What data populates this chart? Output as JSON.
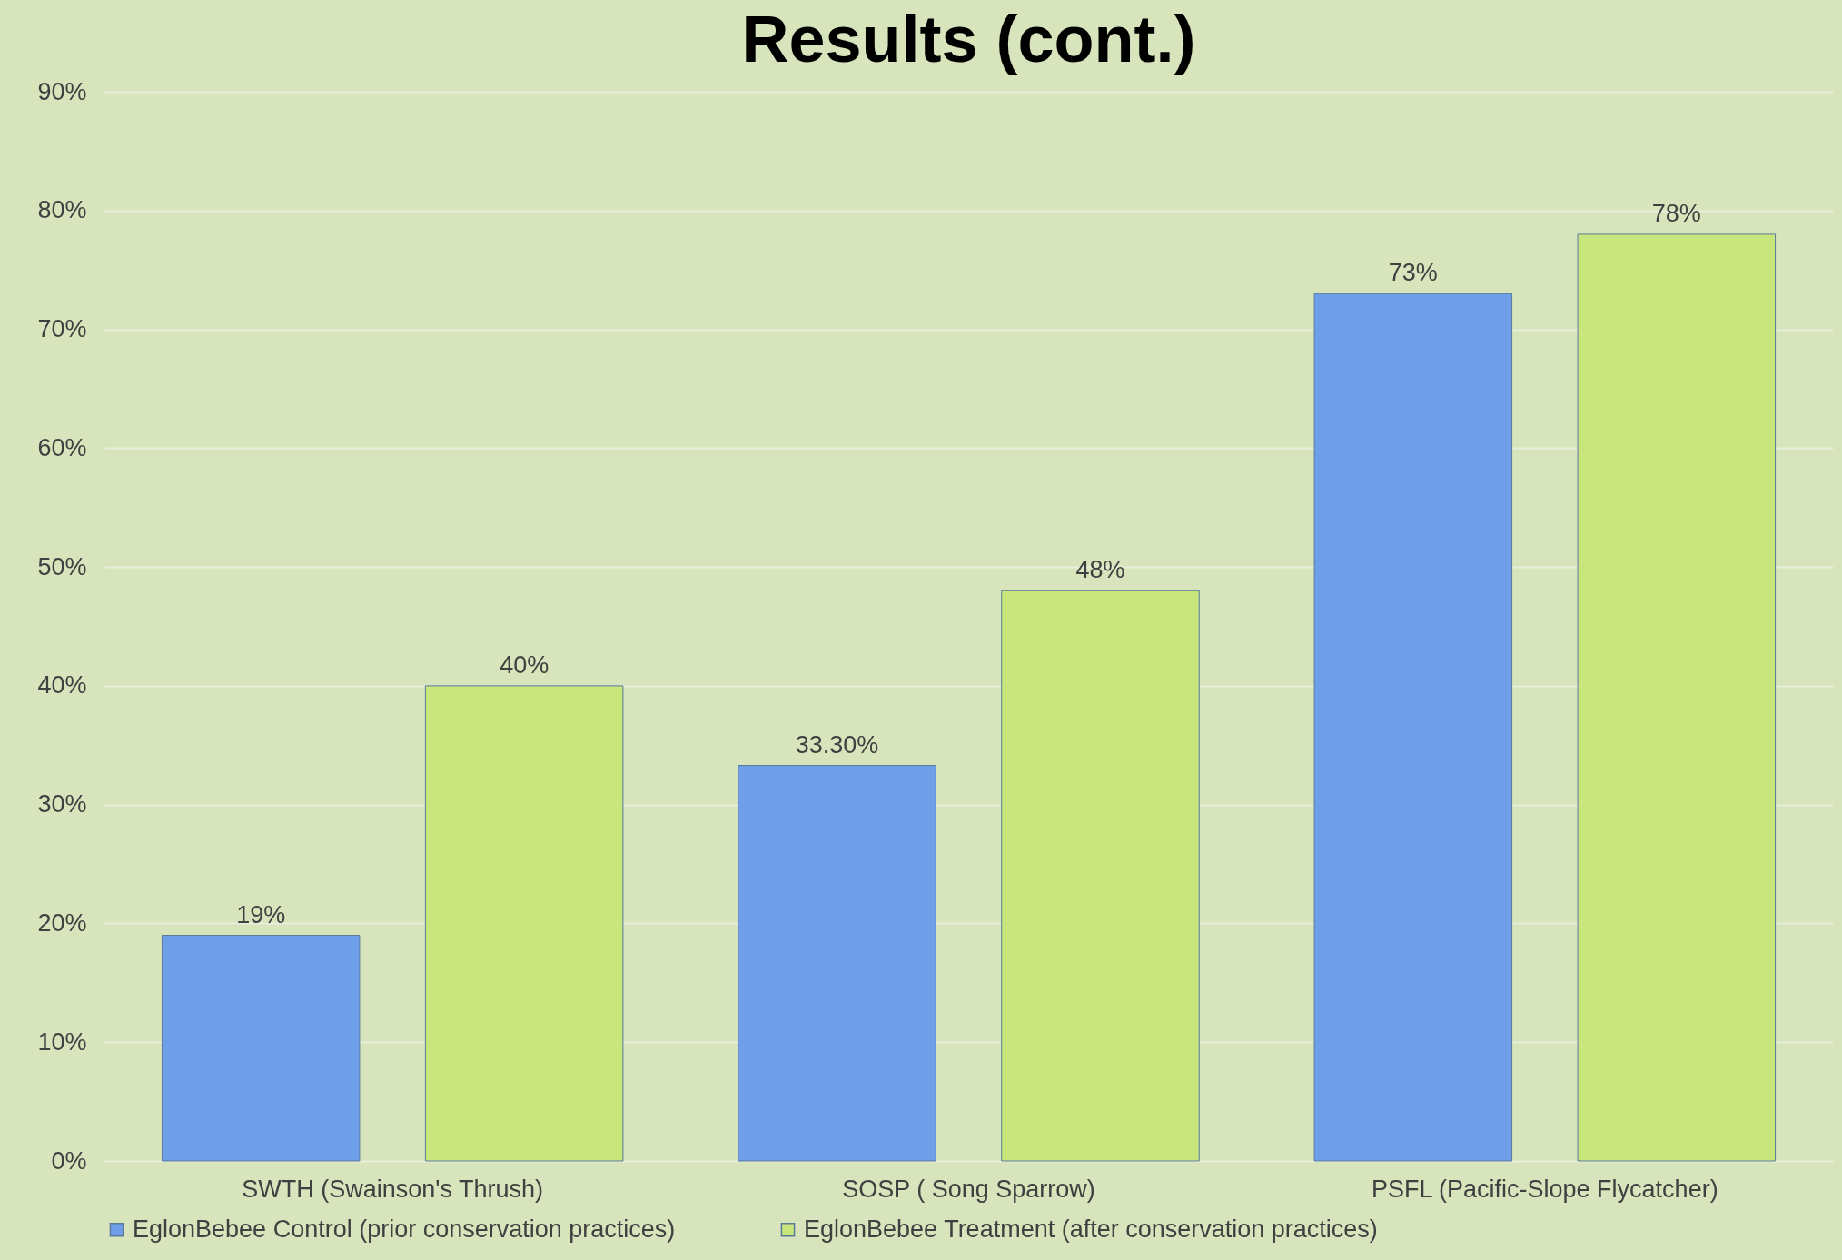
{
  "chart_data": {
    "type": "bar",
    "title": "Results (cont.)",
    "categories": [
      "SWTH (Swainson's Thrush)",
      "SOSP ( Song Sparrow)",
      "PSFL (Pacific-Slope Flycatcher)"
    ],
    "series": [
      {
        "name": "EglonBebee Control (prior conservation practices)",
        "color": "#6f9fe8",
        "values": [
          19,
          33.3,
          73
        ],
        "value_labels": [
          "19%",
          "33.30%",
          "73%"
        ]
      },
      {
        "name": "EglonBebee Treatment (after conservation practices)",
        "color": "#c9e67c",
        "values": [
          40,
          48,
          78
        ],
        "value_labels": [
          "40%",
          "48%",
          "78%"
        ]
      }
    ],
    "ylim": [
      0,
      90
    ],
    "yticks": [
      {
        "value": 0,
        "label": "0%"
      },
      {
        "value": 10,
        "label": "10%"
      },
      {
        "value": 20,
        "label": "20%"
      },
      {
        "value": 30,
        "label": "30%"
      },
      {
        "value": 40,
        "label": "40%"
      },
      {
        "value": 50,
        "label": "50%"
      },
      {
        "value": 60,
        "label": "60%"
      },
      {
        "value": 70,
        "label": "70%"
      },
      {
        "value": 80,
        "label": "80%"
      },
      {
        "value": 90,
        "label": "90%"
      }
    ],
    "grid": "y",
    "legend": "bottom"
  }
}
